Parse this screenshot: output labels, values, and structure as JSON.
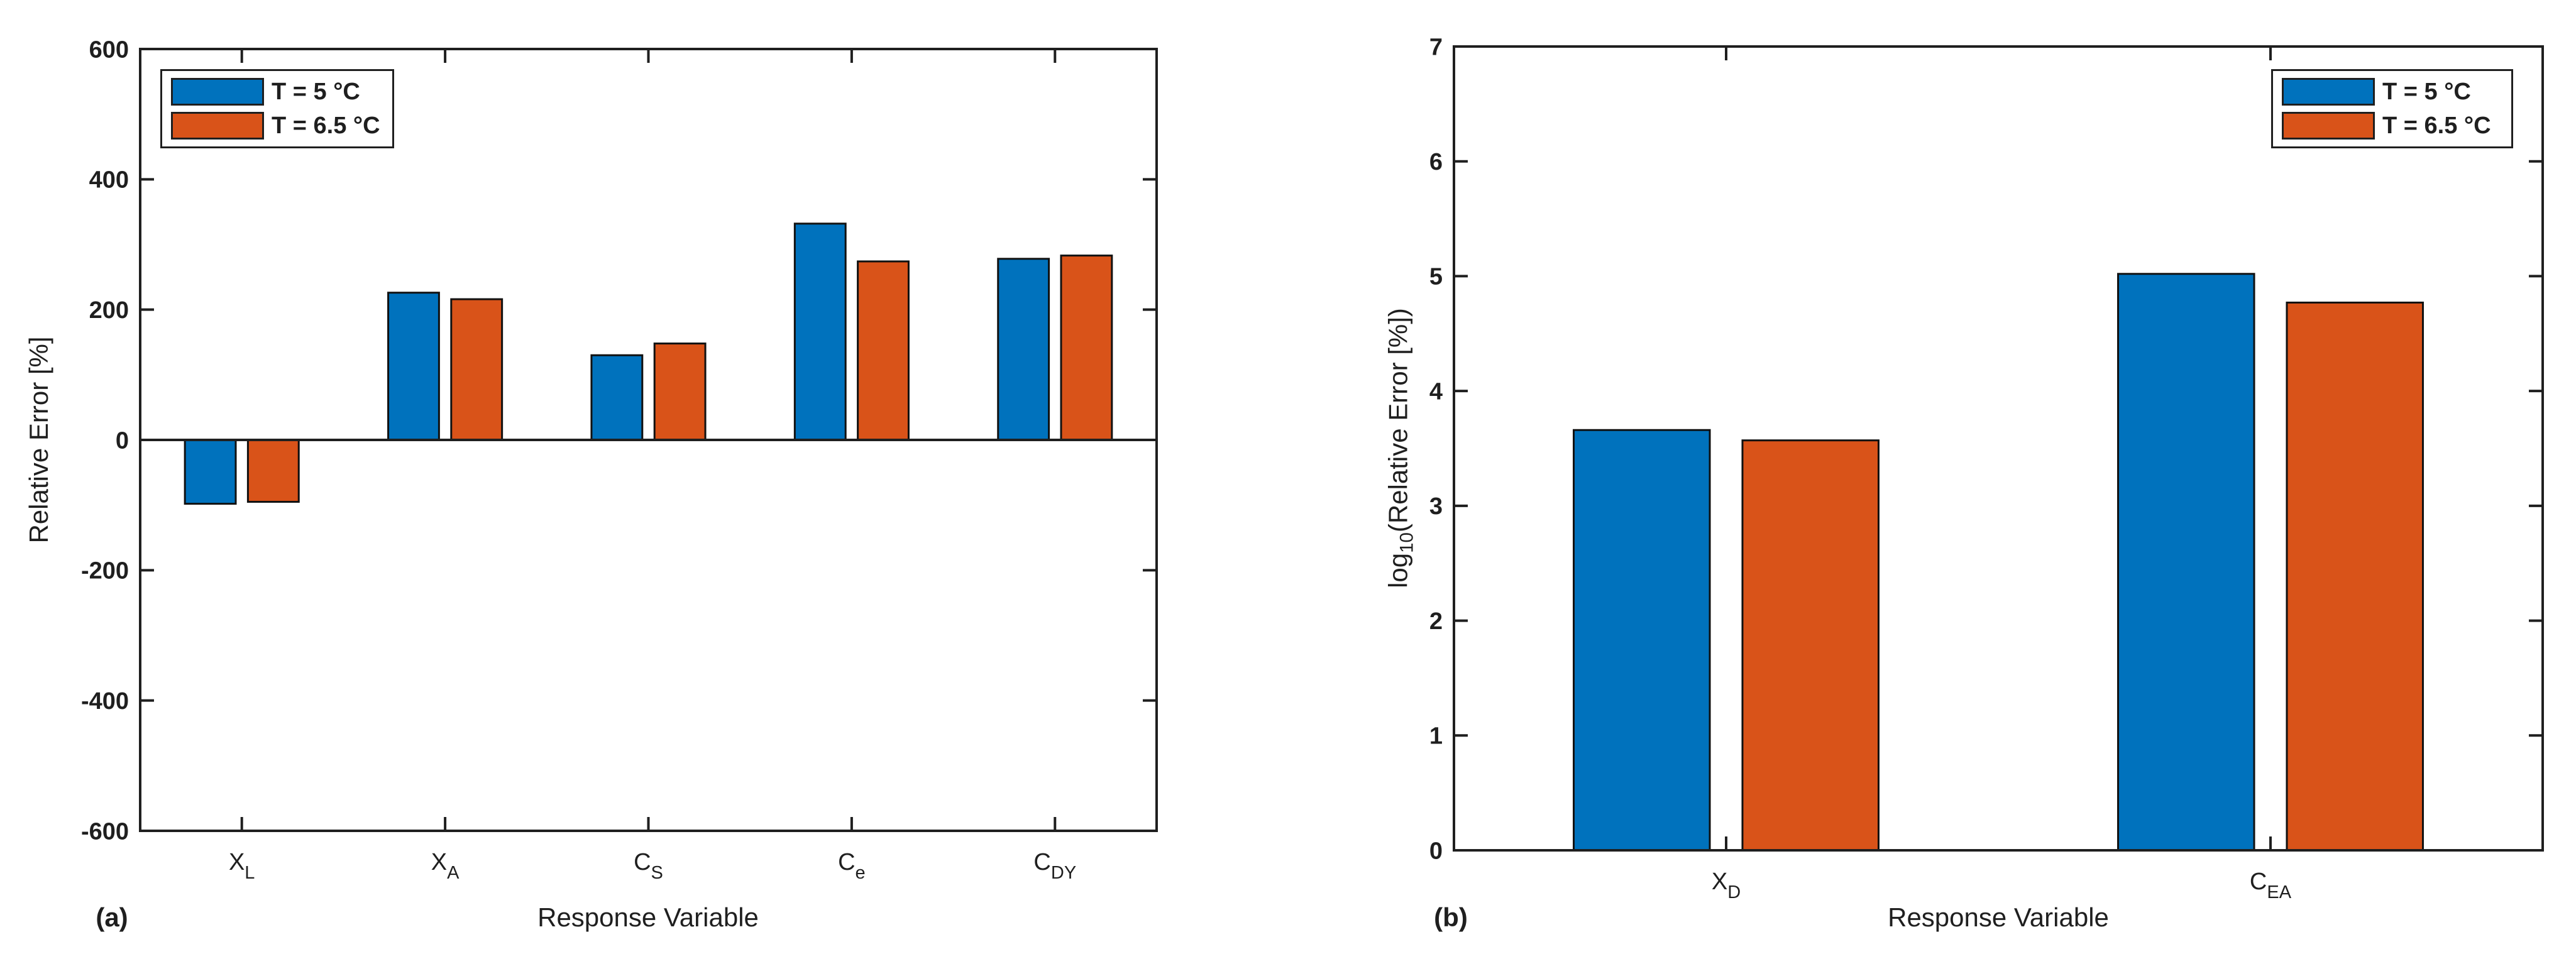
{
  "figure": {
    "background": "#ffffff",
    "axis_color": "#1f1f1f",
    "bar_edge_color": "#111111"
  },
  "legend": {
    "entries": [
      {
        "label": "T = 5 °C",
        "color": "#0072BD"
      },
      {
        "label": "T = 6.5 °C",
        "color": "#D95319"
      }
    ]
  },
  "chart_data": [
    {
      "type": "bar",
      "panel_label": "(a)",
      "title": "",
      "xlabel": "Response Variable",
      "ylabel": "Relative Error [%]",
      "ylabel_parts": [
        {
          "text": "Relative Error [%]",
          "sub": false
        }
      ],
      "ylim": [
        -600,
        600
      ],
      "yticks": [
        600,
        400,
        200,
        0,
        -200,
        -400,
        -600
      ],
      "grid": false,
      "legend_position": "top-left",
      "categories": [
        "X_L",
        "X_A",
        "C_S",
        "C_e",
        "C_DY"
      ],
      "categories_parts": [
        {
          "main": "X",
          "sub": "L"
        },
        {
          "main": "X",
          "sub": "A"
        },
        {
          "main": "C",
          "sub": "S"
        },
        {
          "main": "C",
          "sub": "e"
        },
        {
          "main": "C",
          "sub": "DY"
        }
      ],
      "series": [
        {
          "name": "T = 5 °C",
          "color": "#0072BD",
          "values": [
            -98,
            226,
            130,
            332,
            278
          ]
        },
        {
          "name": "T = 6.5 °C",
          "color": "#D95319",
          "values": [
            -95,
            216,
            148,
            274,
            283
          ]
        }
      ]
    },
    {
      "type": "bar",
      "panel_label": "(b)",
      "title": "",
      "xlabel": "Response Variable",
      "ylabel": "log_10(Relative Error [%])",
      "ylabel_parts": [
        {
          "text": "log",
          "sub": false
        },
        {
          "text": "10",
          "sub": true
        },
        {
          "text": "(Relative Error [%])",
          "sub": false
        }
      ],
      "ylim": [
        0,
        7
      ],
      "yticks": [
        7,
        6,
        5,
        4,
        3,
        2,
        1,
        0
      ],
      "grid": false,
      "legend_position": "top-right",
      "categories": [
        "X_D",
        "C_EA"
      ],
      "categories_parts": [
        {
          "main": "X",
          "sub": "D"
        },
        {
          "main": "C",
          "sub": "EA"
        }
      ],
      "series": [
        {
          "name": "T = 5 °C",
          "color": "#0072BD",
          "values": [
            3.66,
            5.02
          ]
        },
        {
          "name": "T = 6.5 °C",
          "color": "#D95319",
          "values": [
            3.57,
            4.77
          ]
        }
      ]
    }
  ]
}
